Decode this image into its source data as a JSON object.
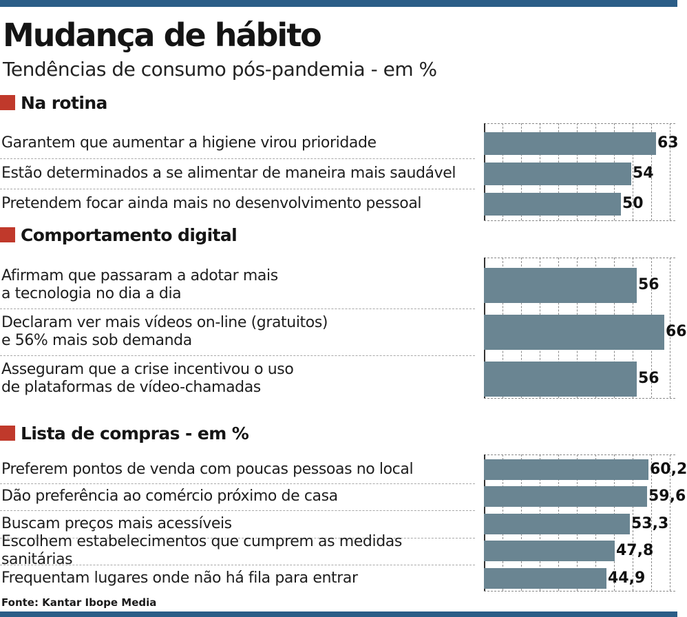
{
  "title": "Mudança de hábito",
  "subtitle": "Tendências de consumo pós-pandemia - em %",
  "source": "Fonte: Kantar Ibope Media",
  "colors": {
    "bar": "#6a8592",
    "accent": "#c0392b",
    "frame": "#2b5d87"
  },
  "chart_data": [
    {
      "type": "bar",
      "orientation": "horizontal",
      "title": "Na rotina",
      "xlim": [
        0,
        70
      ],
      "grid": true,
      "categories": [
        "Garantem que aumentar a higiene virou prioridade",
        "Estão determinados a se alimentar de maneira mais saudável",
        "Pretendem focar ainda mais no desenvolvimento pessoal"
      ],
      "values": [
        63,
        54,
        50
      ],
      "value_labels": [
        "63",
        "54",
        "50"
      ]
    },
    {
      "type": "bar",
      "orientation": "horizontal",
      "title": "Comportamento digital",
      "xlim": [
        0,
        70
      ],
      "grid": true,
      "categories": [
        "Afirmam que passaram a adotar mais\na tecnologia no dia a dia",
        "Declaram ver mais vídeos on-line (gratuitos)\ne 56% mais sob demanda",
        "Asseguram que a crise incentivou o uso\nde plataformas de vídeo-chamadas"
      ],
      "values": [
        56,
        66,
        56
      ],
      "value_labels": [
        "56",
        "66",
        "56"
      ]
    },
    {
      "type": "bar",
      "orientation": "horizontal",
      "title": "Lista de compras - em %",
      "xlim": [
        0,
        70
      ],
      "grid": true,
      "categories": [
        "Preferem pontos de venda com poucas pessoas no local",
        "Dão preferência ao comércio próximo de casa",
        "Buscam preços mais acessíveis",
        "Escolhem estabelecimentos que cumprem as medidas sanitárias",
        "Frequentam lugares onde não há fila para entrar"
      ],
      "values": [
        60.2,
        59.6,
        53.3,
        47.8,
        44.9
      ],
      "value_labels": [
        "60,2",
        "59,6",
        "53,3",
        "47,8",
        "44,9"
      ]
    }
  ]
}
